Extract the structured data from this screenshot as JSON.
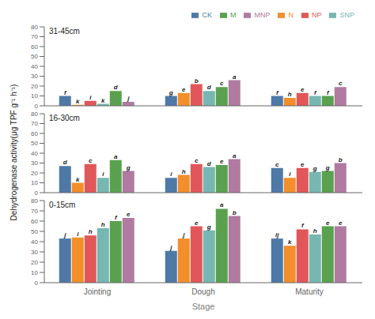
{
  "chart_data": [
    {
      "type": "bar",
      "title": "31-45cm",
      "categories": [
        "Jointing",
        "Dough",
        "Maturity"
      ],
      "series": [
        {
          "name": "CK",
          "color": "#4e79a7",
          "values": [
            10,
            10,
            10
          ],
          "letters": [
            "f",
            "g",
            "f"
          ]
        },
        {
          "name": "N",
          "color": "#f28e2b",
          "values": [
            1,
            13,
            8
          ],
          "letters": [
            "k",
            "e",
            "h"
          ]
        },
        {
          "name": "NP",
          "color": "#e15759",
          "values": [
            5,
            22,
            13
          ],
          "letters": [
            "i",
            "b",
            "e"
          ]
        },
        {
          "name": "SNP",
          "color": "#76b7b2",
          "values": [
            2,
            15,
            10
          ],
          "letters": [
            "k",
            "d",
            "f"
          ]
        },
        {
          "name": "M",
          "color": "#59a14f",
          "values": [
            15,
            19,
            10
          ],
          "letters": [
            "d",
            "c",
            "f"
          ]
        },
        {
          "name": "MNP",
          "color": "#b07aa1",
          "values": [
            4,
            26,
            19
          ],
          "letters": [
            "j",
            "a",
            "c"
          ]
        }
      ],
      "ylim": [
        0,
        80
      ],
      "yticks": [
        0,
        10,
        20,
        30,
        40,
        50,
        60,
        70,
        80
      ],
      "grid": false,
      "legend": "upper right",
      "tick_labels": "y"
    },
    {
      "type": "bar",
      "title": "16-30cm",
      "categories": [
        "Jointing",
        "Dough",
        "Maturity"
      ],
      "ylabel": "Dehydrogenase activity(μg TPF g⁻¹ h⁻¹)",
      "series": [
        {
          "name": "CK",
          "color": "#4e79a7",
          "values": [
            27,
            15,
            25
          ],
          "letters": [
            "d",
            "i",
            "c"
          ]
        },
        {
          "name": "N",
          "color": "#f28e2b",
          "values": [
            10,
            18,
            15
          ],
          "letters": [
            "k",
            "h",
            "i"
          ]
        },
        {
          "name": "NP",
          "color": "#e15759",
          "values": [
            29,
            29,
            25
          ],
          "letters": [
            "c",
            "c",
            "e"
          ]
        },
        {
          "name": "SNP",
          "color": "#76b7b2",
          "values": [
            15,
            26,
            21
          ],
          "letters": [
            "i",
            "d",
            "g"
          ]
        },
        {
          "name": "M",
          "color": "#59a14f",
          "values": [
            33,
            28,
            22
          ],
          "letters": [
            "a",
            "e",
            "g"
          ]
        },
        {
          "name": "MNP",
          "color": "#b07aa1",
          "values": [
            22,
            34,
            30
          ],
          "letters": [
            "g",
            "a",
            "b"
          ]
        }
      ],
      "ylim": [
        0,
        80
      ],
      "yticks": [
        0,
        10,
        20,
        30,
        40,
        50,
        60,
        70,
        80
      ],
      "grid": false,
      "tick_labels": "y"
    },
    {
      "type": "bar",
      "title": "0-15cm",
      "categories": [
        "Jointing",
        "Dough",
        "Maturity"
      ],
      "xlabel": "Stage",
      "series": [
        {
          "name": "CK",
          "color": "#4e79a7",
          "values": [
            43,
            31,
            43
          ],
          "letters": [
            "j",
            "j",
            "ij"
          ]
        },
        {
          "name": "N",
          "color": "#f28e2b",
          "values": [
            44,
            43,
            36
          ],
          "letters": [
            "i",
            "j",
            "k"
          ]
        },
        {
          "name": "NP",
          "color": "#e15759",
          "values": [
            46,
            55,
            52
          ],
          "letters": [
            "h",
            "e",
            "f"
          ]
        },
        {
          "name": "SNP",
          "color": "#76b7b2",
          "values": [
            53,
            51,
            47
          ],
          "letters": [
            "h",
            "g",
            "h"
          ]
        },
        {
          "name": "M",
          "color": "#59a14f",
          "values": [
            60,
            72,
            55
          ],
          "letters": [
            "f",
            "a",
            "e"
          ]
        },
        {
          "name": "MNP",
          "color": "#b07aa1",
          "values": [
            63,
            65,
            55
          ],
          "letters": [
            "e",
            "b",
            "e"
          ]
        }
      ],
      "ylim": [
        0,
        80
      ],
      "yticks": [
        0,
        10,
        20,
        30,
        40,
        50,
        60,
        70,
        80
      ],
      "grid": false
    }
  ]
}
